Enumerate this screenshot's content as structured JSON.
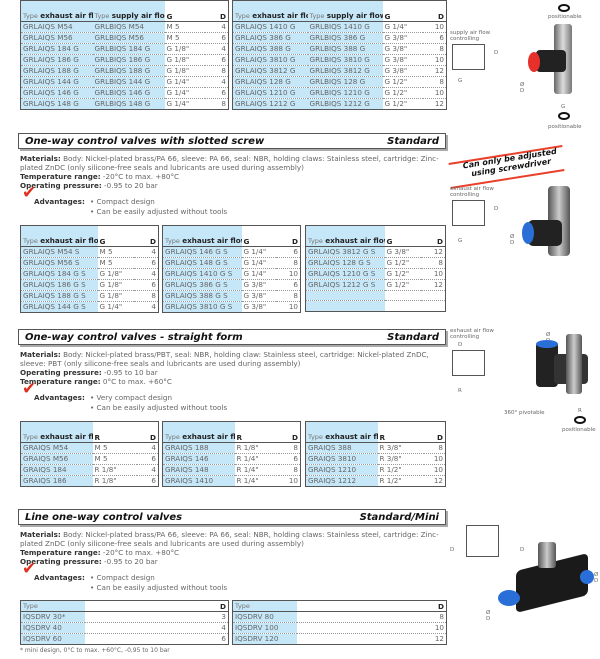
{
  "top_tables": [
    {
      "headers": [
        {
          "pre": "Type",
          "text": "exhaust air flow controlling"
        },
        {
          "pre": "Type",
          "text": "supply air flow controlling"
        },
        {
          "text": "G"
        },
        {
          "text": "D"
        }
      ],
      "rows": [
        [
          "GRLAIQS M54",
          "GRLBIQS M54",
          "M 5",
          "4"
        ],
        [
          "GRLAIQS M56",
          "GRLBIQS M56",
          "M 5",
          "6"
        ],
        [
          "GRLAIQS 184 G",
          "GRLBIQS 184 G",
          "G 1/8\"",
          "4"
        ],
        [
          "GRLAIQS 186 G",
          "GRLBIQS 186 G",
          "G 1/8\"",
          "6"
        ],
        [
          "GRLAIQS 188 G",
          "GRLBIQS 188 G",
          "G 1/8\"",
          "8"
        ],
        [
          "GRLAIQS 144 G",
          "GRLBIQS 144 G",
          "G 1/4\"",
          "4"
        ],
        [
          "GRLAIQS 146 G",
          "GRLBIQS 146 G",
          "G 1/4\"",
          "6"
        ],
        [
          "GRLAIQS 148 G",
          "GRLBIQS 148 G",
          "G 1/4\"",
          "8"
        ]
      ]
    },
    {
      "headers": [
        {
          "pre": "Type",
          "text": "exhaust air flow controlling"
        },
        {
          "pre": "Type",
          "text": "supply air flow controlling"
        },
        {
          "text": "G"
        },
        {
          "text": "D"
        }
      ],
      "rows": [
        [
          "GRLAIQS 1410 G",
          "GRLBIQS 1410 G",
          "G 1/4\"",
          "10"
        ],
        [
          "GRLAIQS 386 G",
          "GRLBIQS 386 G",
          "G 3/8\"",
          "6"
        ],
        [
          "GRLAIQS 388 G",
          "GRLBIQS 388 G",
          "G 3/8\"",
          "8"
        ],
        [
          "GRLAIQS 3810 G",
          "GRLBIQS 3810 G",
          "G 3/8\"",
          "10"
        ],
        [
          "GRLAIQS 3812 G",
          "GRLBIQS 3812 G",
          "G 3/8\"",
          "12"
        ],
        [
          "GRLAIQS 128 G",
          "GRLBIQS 128 G",
          "G 1/2\"",
          "8"
        ],
        [
          "GRLAIQS 1210 G",
          "GRLBIQS 1210 G",
          "G 1/2\"",
          "10"
        ],
        [
          "GRLAIQS 1212 G",
          "GRLBIQS 1212 G",
          "G 1/2\"",
          "12"
        ]
      ]
    }
  ],
  "top_figure": {
    "symbol_label": "supply air flow controlling",
    "port_d": "D",
    "port_g": "G",
    "dia_label": "Ø D",
    "g_label": "G",
    "positionable_top": "positionable",
    "positionable_bottom": "positionable",
    "top_g": "G"
  },
  "sections": [
    {
      "title": "One-way control valves with slotted screw",
      "tag": "Standard",
      "materials_label": "Materials:",
      "materials": "Body: Nickel-plated brass/PA 66, sleeve: PA 66, seal: NBR, holding claws: Stainless steel, cartridge: Zinc-plated ZnDC (only silicone-free seals and lubricants are used during assembly)",
      "lines": [
        {
          "label": "Temperature range:",
          "value": "-20°C to max. +80°C"
        },
        {
          "label": "Operating pressure:",
          "value": "-0.95 to 20 bar"
        }
      ],
      "advantages_label": "Advantages:",
      "advantages": [
        "• Compact design",
        "• Can be easily adjusted without tools"
      ],
      "tables": [
        {
          "headers": [
            {
              "pre": "Type",
              "text": "exhaust air flow controlling"
            },
            {
              "text": "G"
            },
            {
              "text": "D"
            }
          ],
          "rows": [
            [
              "GRLAIQS M54 S",
              "M 5",
              "4"
            ],
            [
              "GRLAIQS M56 S",
              "M 5",
              "6"
            ],
            [
              "GRLAIQS 184 G S",
              "G 1/8\"",
              "4"
            ],
            [
              "GRLAIQS 186 G S",
              "G 1/8\"",
              "6"
            ],
            [
              "GRLAIQS 188 G S",
              "G 1/8\"",
              "8"
            ],
            [
              "GRLAIQS 144 G S",
              "G 1/4\"",
              "4"
            ]
          ]
        },
        {
          "headers": [
            {
              "pre": "Type",
              "text": "exhaust air flow controlling"
            },
            {
              "text": "G"
            },
            {
              "text": "D"
            }
          ],
          "rows": [
            [
              "GRLAIQS 146 G S",
              "G 1/4\"",
              "6"
            ],
            [
              "GRLAIQS 148 G S",
              "G 1/4\"",
              "8"
            ],
            [
              "GRLAIQS 1410 G S",
              "G 1/4\"",
              "10"
            ],
            [
              "GRLAIQS 386 G S",
              "G 3/8\"",
              "6"
            ],
            [
              "GRLAIQS 388 G S",
              "G 3/8\"",
              "8"
            ],
            [
              "GRLAIQS 3810 G S",
              "G 3/8\"",
              "10"
            ]
          ]
        },
        {
          "headers": [
            {
              "pre": "Type",
              "text": "exhaust air flow controlling"
            },
            {
              "text": "G"
            },
            {
              "text": "D"
            }
          ],
          "rows": [
            [
              "GRLAIQS 3812 G S",
              "G 3/8\"",
              "12"
            ],
            [
              "GRLAIQS 128 G S",
              "G 1/2\"",
              "8"
            ],
            [
              "GRLAIQS 1210 G S",
              "G 1/2\"",
              "10"
            ],
            [
              "GRLAIQS 1212 G S",
              "G 1/2\"",
              "12"
            ],
            [
              "",
              "",
              ""
            ],
            [
              "",
              "",
              ""
            ]
          ]
        }
      ],
      "figure": {
        "banner": "Can only be adjusted using screwdriver",
        "symbol_label": "exhaust air flow controlling",
        "port_d": "D",
        "port_g": "G",
        "dia_label": "Ø D"
      }
    },
    {
      "title": "One-way control valves - straight form",
      "tag": "Standard",
      "materials_label": "Materials:",
      "materials": "Body: Nickel-plated brass/PBT, seal: NBR, holding claw: Stainless steel, cartridge: Nickel-plated ZnDC, sleeve: PBT (only silicone-free seals and lubricants are used during assembly)",
      "lines": [
        {
          "label": "Operating pressure:",
          "value": "-0.95 to 10 bar"
        },
        {
          "label": "Temperature range:",
          "value": "0°C to max. +60°C"
        }
      ],
      "advantages_label": "Advantages:",
      "advantages": [
        "• Very compact design",
        "• Can be easily adjusted without tools"
      ],
      "tables": [
        {
          "headers": [
            {
              "pre": "Type",
              "text": "exhaust air flow controlling"
            },
            {
              "text": "R"
            },
            {
              "text": "D"
            }
          ],
          "rows": [
            [
              "GRAIQS M54",
              "M 5",
              "4"
            ],
            [
              "GRAIQS M56",
              "M 5",
              "6"
            ],
            [
              "GRAIQS 184",
              "R 1/8\"",
              "4"
            ],
            [
              "GRAIQS 186",
              "R 1/8\"",
              "6"
            ]
          ]
        },
        {
          "headers": [
            {
              "pre": "Type",
              "text": "exhaust air flow controlling"
            },
            {
              "text": "R"
            },
            {
              "text": "D"
            }
          ],
          "rows": [
            [
              "GRAIQS 188",
              "R 1/8\"",
              "8"
            ],
            [
              "GRAIQS 146",
              "R 1/4\"",
              "6"
            ],
            [
              "GRAIQS 148",
              "R 1/4\"",
              "8"
            ],
            [
              "GRAIQS 1410",
              "R 1/4\"",
              "10"
            ]
          ]
        },
        {
          "headers": [
            {
              "pre": "Type",
              "text": "exhaust air flow controlling"
            },
            {
              "text": "R"
            },
            {
              "text": "D"
            }
          ],
          "rows": [
            [
              "GRAIQS 388",
              "R 3/8\"",
              "8"
            ],
            [
              "GRAIQS 3810",
              "R 3/8\"",
              "10"
            ],
            [
              "GRAIQS 1210",
              "R 1/2\"",
              "10"
            ],
            [
              "GRAIQS 1212",
              "R 1/2\"",
              "12"
            ]
          ]
        }
      ],
      "figure": {
        "symbol_label": "exhaust air flow controlling",
        "port_d": "D",
        "port_r": "R",
        "dia_label": "Ø D",
        "r_label": "R",
        "pivot": "360° pivotable",
        "positionable": "positionable"
      }
    },
    {
      "title": "Line one-way control valves",
      "tag": "Standard/Mini",
      "materials_label": "Materials:",
      "materials": "Body: Nickel-plated brass/PA 66, sleeve: PA 66, seal: NBR, holding claws: Stainless steel, cartridge: Zinc-plated ZnDC (only silicone-free seals and lubricants are used during assembly)",
      "lines": [
        {
          "label": "Temperature range:",
          "value": "-20°C to max. +80°C"
        },
        {
          "label": "Operating pressure:",
          "value": "-0.95 to 20 bar"
        }
      ],
      "advantages_label": "Advantages:",
      "advantages": [
        "• Compact design",
        "• Can be easily adjusted without tools"
      ],
      "tables": [
        {
          "headers": [
            {
              "pre": "Type",
              "text": ""
            },
            {
              "text": "D"
            }
          ],
          "rows": [
            [
              "IQSDRV 30*",
              "3"
            ],
            [
              "IQSDRV 40",
              "4"
            ],
            [
              "IQSDRV 60",
              "6"
            ]
          ]
        },
        {
          "headers": [
            {
              "pre": "Type",
              "text": ""
            },
            {
              "text": "D"
            }
          ],
          "rows": [
            [
              "IQSDRV 80",
              "8"
            ],
            [
              "IQSDRV 100",
              "10"
            ],
            [
              "IQSDRV 120",
              "12"
            ]
          ]
        }
      ],
      "footnote": "* mini design, 0°C to max. +60°C, -0,95 to 10 bar",
      "figure": {
        "port_d1": "D",
        "port_d2": "D",
        "dia_left": "Ø D",
        "dia_right": "Ø D"
      }
    }
  ],
  "colors": {
    "highlight": "#c6e7f8",
    "check": "#e03020",
    "banner_line": "#e8402a",
    "sleeve_red": "#e8302a",
    "sleeve_blue": "#2a6fd8"
  }
}
